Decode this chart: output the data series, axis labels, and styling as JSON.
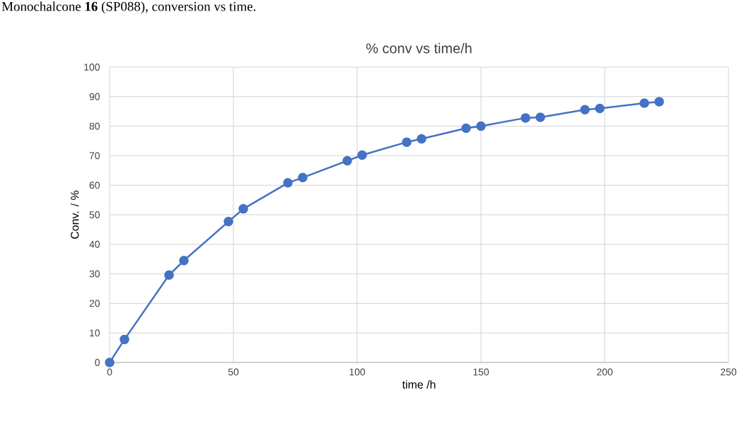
{
  "chart_data": {
    "type": "line",
    "title": "% conv vs time/h",
    "xlabel": "time /h",
    "ylabel": "Conv. / %",
    "annotations": [
      "Monochalcone **16** (SP088), conversion vs time."
    ],
    "x": [
      0,
      6,
      24,
      30,
      48,
      54,
      72,
      78,
      96,
      102,
      120,
      126,
      144,
      150,
      168,
      174,
      192,
      198,
      216,
      222
    ],
    "values": [
      0,
      7.8,
      29.6,
      34.5,
      47.7,
      52,
      60.8,
      62.6,
      68.3,
      70.2,
      74.6,
      75.7,
      79.3,
      80,
      82.8,
      83,
      85.6,
      86,
      87.8,
      88.3
    ],
    "color": "#4472c4",
    "marker": "circle",
    "line_style": "solid",
    "xlim": [
      0,
      250
    ],
    "xticks": [
      0,
      50,
      100,
      150,
      200,
      250
    ],
    "ylim": [
      0,
      100
    ],
    "yticks": [
      0,
      10,
      20,
      30,
      40,
      50,
      60,
      70,
      80,
      90,
      100
    ],
    "grid": true
  }
}
